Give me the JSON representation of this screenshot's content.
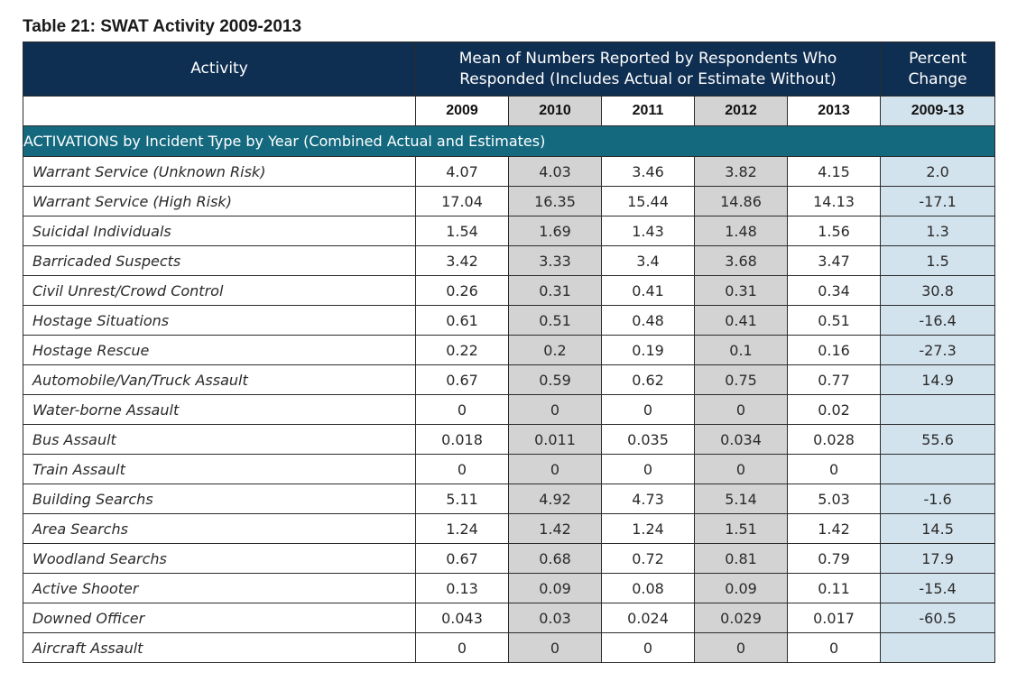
{
  "caption": "Table 21: SWAT Activity 2009-2013",
  "header": {
    "activity": "Activity",
    "mean_line1": "Mean of Numbers Reported by Respondents Who",
    "mean_line2": "Responded (Includes Actual or Estimate Without)",
    "pct_line1": "Percent",
    "pct_line2": "Change"
  },
  "years": [
    "2009",
    "2010",
    "2011",
    "2012",
    "2013"
  ],
  "pct_period": "2009-13",
  "section_title": "ACTIVATIONS by Incident Type by Year (Combined Actual and Estimates)",
  "colors": {
    "header_bg": "#0f2f52",
    "section_bg": "#14697f",
    "shaded_col": "#d3d3d3",
    "pct_col": "#d3e3ee"
  },
  "rows": [
    {
      "activity": "Warrant Service (Unknown Risk)",
      "v": [
        "4.07",
        "4.03",
        "3.46",
        "3.82",
        "4.15"
      ],
      "pct": "2.0"
    },
    {
      "activity": "Warrant Service (High Risk)",
      "v": [
        "17.04",
        "16.35",
        "15.44",
        "14.86",
        "14.13"
      ],
      "pct": "-17.1"
    },
    {
      "activity": "Suicidal Individuals",
      "v": [
        "1.54",
        "1.69",
        "1.43",
        "1.48",
        "1.56"
      ],
      "pct": "1.3"
    },
    {
      "activity": "Barricaded Suspects",
      "v": [
        "3.42",
        "3.33",
        "3.4",
        "3.68",
        "3.47"
      ],
      "pct": "1.5"
    },
    {
      "activity": "Civil Unrest/Crowd Control",
      "v": [
        "0.26",
        "0.31",
        "0.41",
        "0.31",
        "0.34"
      ],
      "pct": "30.8"
    },
    {
      "activity": "Hostage Situations",
      "v": [
        "0.61",
        "0.51",
        "0.48",
        "0.41",
        "0.51"
      ],
      "pct": "-16.4"
    },
    {
      "activity": "Hostage Rescue",
      "v": [
        "0.22",
        "0.2",
        "0.19",
        "0.1",
        "0.16"
      ],
      "pct": "-27.3"
    },
    {
      "activity": "Automobile/Van/Truck Assault",
      "v": [
        "0.67",
        "0.59",
        "0.62",
        "0.75",
        "0.77"
      ],
      "pct": "14.9"
    },
    {
      "activity": "Water-borne Assault",
      "v": [
        "0",
        "0",
        "0",
        "0",
        "0.02"
      ],
      "pct": ""
    },
    {
      "activity": "Bus Assault",
      "v": [
        "0.018",
        "0.011",
        "0.035",
        "0.034",
        "0.028"
      ],
      "pct": "55.6"
    },
    {
      "activity": "Train Assault",
      "v": [
        "0",
        "0",
        "0",
        "0",
        "0"
      ],
      "pct": ""
    },
    {
      "activity": "Building Searchs",
      "v": [
        "5.11",
        "4.92",
        "4.73",
        "5.14",
        "5.03"
      ],
      "pct": "-1.6"
    },
    {
      "activity": "Area Searchs",
      "v": [
        "1.24",
        "1.42",
        "1.24",
        "1.51",
        "1.42"
      ],
      "pct": "14.5"
    },
    {
      "activity": "Woodland Searchs",
      "v": [
        "0.67",
        "0.68",
        "0.72",
        "0.81",
        "0.79"
      ],
      "pct": "17.9"
    },
    {
      "activity": "Active Shooter",
      "v": [
        "0.13",
        "0.09",
        "0.08",
        "0.09",
        "0.11"
      ],
      "pct": "-15.4"
    },
    {
      "activity": "Downed Officer",
      "v": [
        "0.043",
        "0.03",
        "0.024",
        "0.029",
        "0.017"
      ],
      "pct": "-60.5"
    },
    {
      "activity": "Aircraft Assault",
      "v": [
        "0",
        "0",
        "0",
        "0",
        "0"
      ],
      "pct": ""
    }
  ]
}
